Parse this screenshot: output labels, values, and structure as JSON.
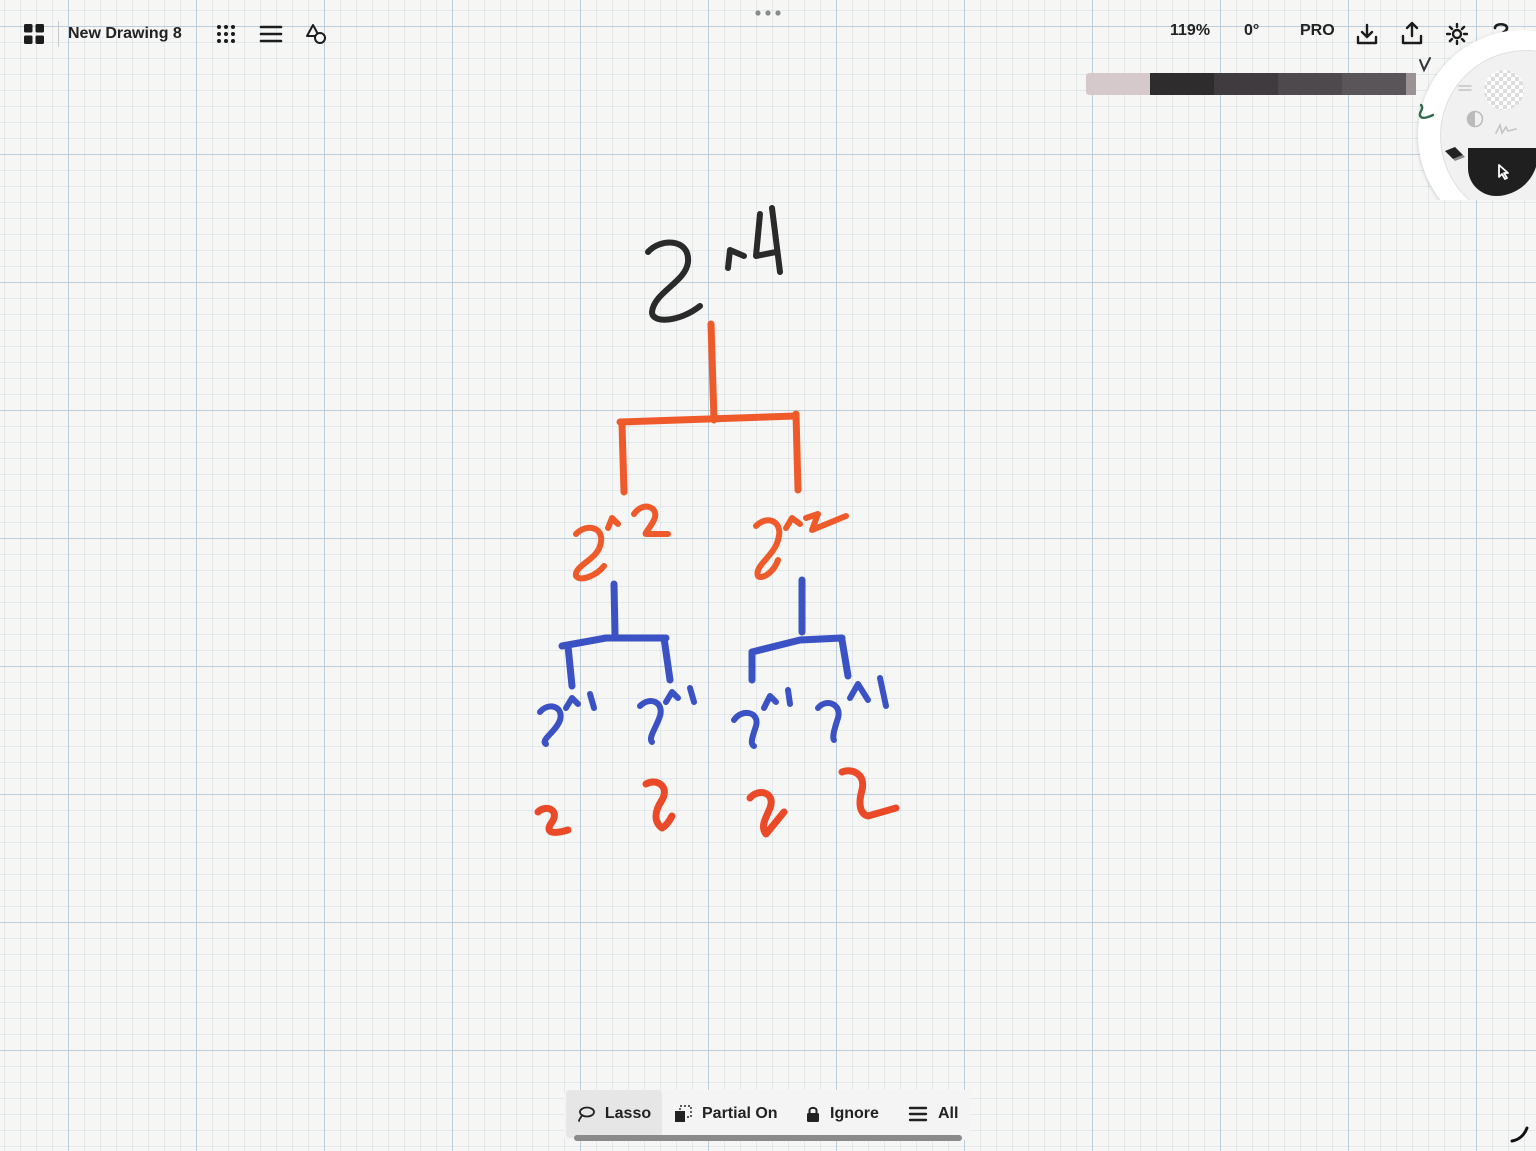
{
  "topbar": {
    "title": "New Drawing 8",
    "zoom": "119%",
    "rotation": "0°",
    "pro_label": "PRO",
    "icons": {
      "gallery": "grid-icon",
      "brushes": "dots-grid-icon",
      "menu": "hamburger-icon",
      "shapes": "shapes-icon",
      "more": "ellipsis-icon",
      "download": "download-icon",
      "share": "share-icon",
      "settings": "gear-icon",
      "help": "question-icon"
    }
  },
  "palette": {
    "swatches": [
      "#d6c9cc",
      "#2f2c2e",
      "#3f3b3e",
      "#4d494c",
      "#5a5558",
      "#9a9294"
    ]
  },
  "tool_wheel": {
    "icons": [
      "pen-icon",
      "brush-icon",
      "eraser-icon",
      "selection-icon",
      "opacity-icon",
      "size-icon",
      "texture-icon",
      "stroke-icon"
    ],
    "active_tool": "selection-icon"
  },
  "drawing": {
    "ink_colors": {
      "root": "#2a2a2a",
      "level1": "#ef5a2a",
      "level2": "#3a52c4",
      "leaves": "#ea4a27"
    }
  },
  "bottom_bar": {
    "lasso_label": "Lasso",
    "partial_label": "Partial On",
    "ignore_label": "Ignore",
    "all_label": "All"
  }
}
